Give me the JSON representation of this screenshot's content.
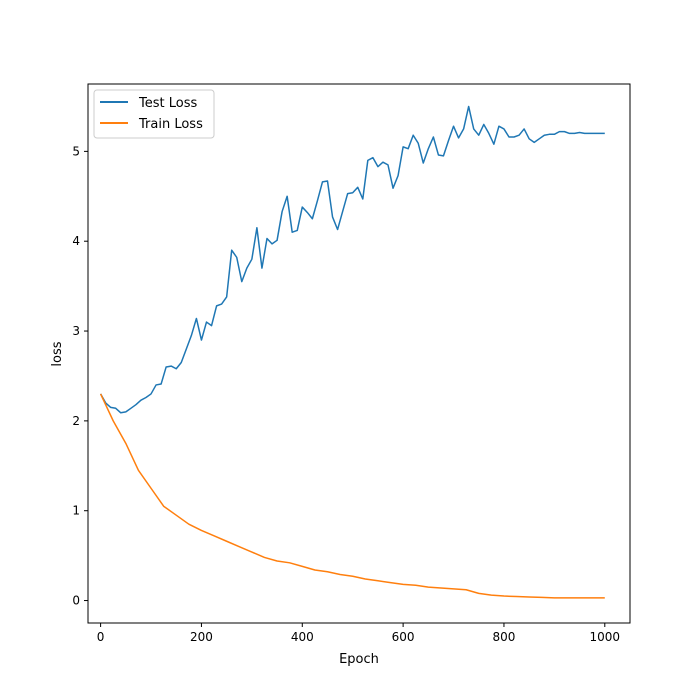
{
  "chart_data": {
    "type": "line",
    "title": "",
    "xlabel": "Epoch",
    "ylabel": "loss",
    "xlim": [
      -25,
      1050
    ],
    "ylim": [
      -0.25,
      5.75
    ],
    "xticks": [
      0,
      200,
      400,
      600,
      800,
      1000
    ],
    "yticks": [
      0,
      1,
      2,
      3,
      4,
      5
    ],
    "grid": false,
    "legend": {
      "position": "top-left",
      "entries": [
        "Test Loss",
        "Train Loss"
      ]
    },
    "series": [
      {
        "name": "Test Loss",
        "color": "#1f77b4",
        "x": [
          0,
          10,
          20,
          30,
          40,
          50,
          60,
          70,
          80,
          90,
          100,
          110,
          120,
          130,
          140,
          150,
          160,
          170,
          180,
          190,
          200,
          210,
          220,
          230,
          240,
          250,
          260,
          270,
          280,
          290,
          300,
          310,
          320,
          330,
          340,
          350,
          360,
          370,
          380,
          390,
          400,
          410,
          420,
          430,
          440,
          450,
          460,
          470,
          480,
          490,
          500,
          510,
          520,
          530,
          540,
          550,
          560,
          570,
          580,
          590,
          600,
          610,
          620,
          630,
          640,
          650,
          660,
          670,
          680,
          690,
          700,
          710,
          720,
          730,
          740,
          750,
          760,
          770,
          780,
          790,
          800,
          810,
          820,
          830,
          840,
          850,
          860,
          870,
          880,
          890,
          900,
          910,
          920,
          930,
          940,
          950,
          960,
          970,
          980,
          990,
          1000
        ],
        "y": [
          2.3,
          2.2,
          2.15,
          2.14,
          2.09,
          2.1,
          2.14,
          2.18,
          2.23,
          2.26,
          2.3,
          2.4,
          2.41,
          2.6,
          2.61,
          2.58,
          2.65,
          2.8,
          2.95,
          3.14,
          2.9,
          3.1,
          3.06,
          3.28,
          3.3,
          3.38,
          3.9,
          3.82,
          3.55,
          3.7,
          3.8,
          4.15,
          3.7,
          4.03,
          3.97,
          4.01,
          4.33,
          4.5,
          4.1,
          4.12,
          4.38,
          4.32,
          4.25,
          4.45,
          4.66,
          4.67,
          4.27,
          4.13,
          4.33,
          4.53,
          4.54,
          4.6,
          4.47,
          4.9,
          4.93,
          4.83,
          4.88,
          4.85,
          4.59,
          4.73,
          5.05,
          5.03,
          5.18,
          5.09,
          4.87,
          5.03,
          5.16,
          4.96,
          4.95,
          5.12,
          5.28,
          5.15,
          5.25,
          5.5,
          5.25,
          5.18,
          5.3,
          5.2,
          5.08,
          5.28,
          5.25,
          5.16,
          5.16,
          5.18,
          5.25,
          5.14,
          5.1,
          5.14,
          5.18,
          5.19,
          5.19,
          5.22,
          5.22,
          5.2,
          5.2,
          5.21,
          5.2,
          5.2,
          5.2,
          5.2,
          5.2
        ]
      },
      {
        "name": "Train Loss",
        "color": "#ff7f0e",
        "x": [
          0,
          25,
          50,
          75,
          100,
          125,
          150,
          175,
          200,
          225,
          250,
          275,
          300,
          325,
          350,
          375,
          400,
          425,
          450,
          475,
          500,
          525,
          550,
          575,
          600,
          625,
          650,
          675,
          700,
          725,
          750,
          775,
          800,
          825,
          850,
          875,
          900,
          925,
          950,
          975,
          1000
        ],
        "y": [
          2.3,
          2.0,
          1.75,
          1.45,
          1.25,
          1.05,
          0.95,
          0.85,
          0.78,
          0.72,
          0.66,
          0.6,
          0.54,
          0.48,
          0.44,
          0.42,
          0.38,
          0.34,
          0.32,
          0.29,
          0.27,
          0.24,
          0.22,
          0.2,
          0.18,
          0.17,
          0.15,
          0.14,
          0.13,
          0.12,
          0.08,
          0.06,
          0.05,
          0.045,
          0.04,
          0.035,
          0.03,
          0.03,
          0.03,
          0.03,
          0.03
        ]
      }
    ]
  }
}
